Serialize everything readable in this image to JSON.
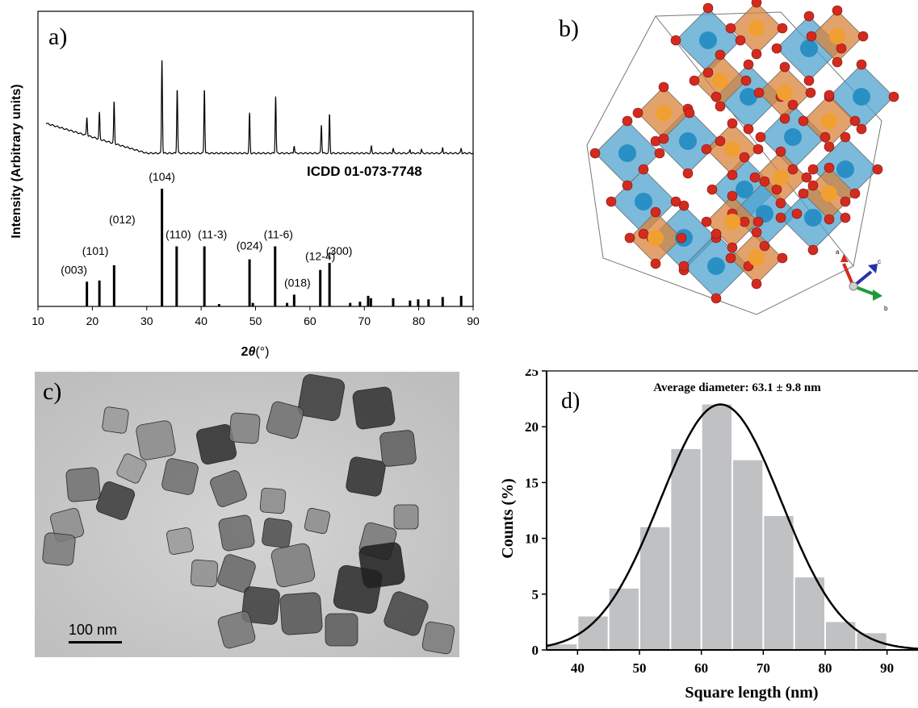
{
  "panel_a": {
    "label": "a)",
    "reference_label": "ICDD 01-073-7748",
    "ylabel": "Intensity (Arbitrary units)",
    "xlabel_prefix": "2",
    "xlabel_theta": "θ",
    "xlabel_suffix": "(°)"
  },
  "panel_b": {
    "label": "b)",
    "axis_labels": [
      "a",
      "c",
      "b"
    ],
    "colors": {
      "octahedron_blue": "#4fa3cf",
      "octahedron_orange": "#d9833a",
      "oxygen_red": "#d42a1e",
      "metal_blue": "#2a8fc4",
      "metal_orange": "#f0a030"
    }
  },
  "panel_c": {
    "label": "c)",
    "scale_bar": "100 nm"
  },
  "panel_d": {
    "label": "d)",
    "title": "Average diameter: 63.1 ± 9.8 nm"
  },
  "chart_data": [
    {
      "type": "line",
      "panel": "a",
      "title": "",
      "xlabel": "2θ(°)",
      "ylabel": "Intensity (Arbitrary units)",
      "xlim": [
        10,
        90
      ],
      "xticks": [
        10,
        20,
        30,
        40,
        50,
        60,
        70,
        80,
        90
      ],
      "series": [
        {
          "peaks_two_theta": [
            19.0,
            21.3,
            24.0,
            32.8,
            35.6,
            40.6,
            48.9,
            53.7,
            57.1,
            62.1,
            63.6,
            71.3,
            75.3,
            78.4,
            80.5,
            84.4,
            87.8
          ],
          "peaks_relative_height": [
            0.19,
            0.28,
            0.44,
            1.0,
            0.68,
            0.68,
            0.42,
            0.6,
            0.08,
            0.3,
            0.41,
            0.07,
            0.05,
            0.04,
            0.04,
            0.06,
            0.05
          ]
        }
      ],
      "reference_pattern": {
        "name": "ICDD 01-073-7748",
        "two_theta": [
          19.0,
          21.3,
          24.0,
          32.8,
          35.5,
          40.6,
          43.3,
          48.9,
          49.5,
          53.6,
          55.8,
          57.1,
          61.9,
          63.6,
          67.4,
          69.2,
          70.7,
          71.2,
          75.3,
          78.4,
          79.9,
          81.8,
          84.4,
          87.8
        ],
        "intensity": [
          21,
          22,
          35,
          100,
          51,
          51,
          2,
          40,
          3,
          51,
          3,
          10,
          31,
          37,
          3,
          4,
          9,
          7,
          7,
          5,
          6,
          6,
          8,
          9
        ],
        "hkl_labels": [
          {
            "text": "(003)",
            "two_theta": 19.0
          },
          {
            "text": "(101)",
            "two_theta": 21.3
          },
          {
            "text": "(012)",
            "two_theta": 24.0
          },
          {
            "text": "(104)",
            "two_theta": 32.8
          },
          {
            "text": "(110)",
            "two_theta": 35.5
          },
          {
            "text": "(11-3)",
            "two_theta": 40.6
          },
          {
            "text": "(024)",
            "two_theta": 48.9
          },
          {
            "text": "(11-6)",
            "two_theta": 53.6
          },
          {
            "text": "(018)",
            "two_theta": 57.1
          },
          {
            "text": "(12-4)",
            "two_theta": 61.9
          },
          {
            "text": "(300)",
            "two_theta": 63.6
          }
        ]
      }
    },
    {
      "type": "bar",
      "panel": "d",
      "title": "Average diameter: 63.1 ± 9.8 nm",
      "xlabel": "Square length (nm)",
      "ylabel": "Counts (%)",
      "xlim": [
        35,
        95
      ],
      "ylim": [
        0,
        25
      ],
      "xticks": [
        40,
        50,
        60,
        70,
        80,
        90
      ],
      "yticks": [
        0,
        5,
        10,
        15,
        20,
        25
      ],
      "bins": [
        [
          35,
          40
        ],
        [
          40,
          45
        ],
        [
          45,
          50
        ],
        [
          50,
          55
        ],
        [
          55,
          60
        ],
        [
          60,
          65
        ],
        [
          65,
          70
        ],
        [
          70,
          75
        ],
        [
          75,
          80
        ],
        [
          80,
          85
        ],
        [
          85,
          90
        ]
      ],
      "values": [
        0.5,
        3.0,
        5.5,
        11.0,
        18.0,
        22.0,
        17.0,
        12.0,
        6.5,
        2.5,
        1.5
      ],
      "fit": {
        "type": "gaussian",
        "mean": 63.1,
        "sd": 9.8,
        "peak": 22.0
      },
      "colors": {
        "bar": "#c0c1c3",
        "fit": "#000000"
      }
    }
  ]
}
